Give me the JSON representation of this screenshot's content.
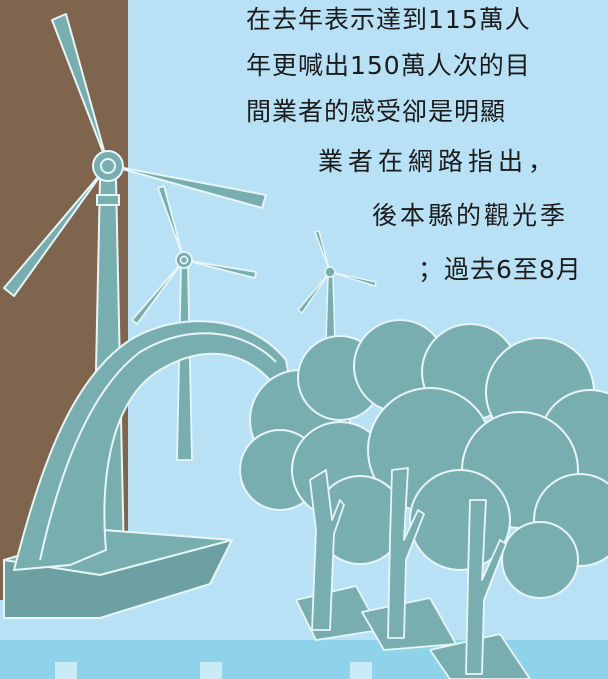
{
  "article": {
    "lines": [
      "在去年表示達到115萬人",
      "年更喊出150萬人次的目",
      "間業者的感受卻是明顯",
      "業者在網路指出，",
      "後本縣的觀光季",
      "；過去6至8月"
    ]
  },
  "illustration": {
    "icons": [
      "wind-turbine-icon",
      "arch-bridge-icon",
      "tree-icon"
    ],
    "colors": {
      "sky": "#b9e1f5",
      "panel": "#7f654d",
      "teal": "#78aeb0",
      "outline": "#e8f5f7",
      "text": "#1b1b1b"
    }
  }
}
